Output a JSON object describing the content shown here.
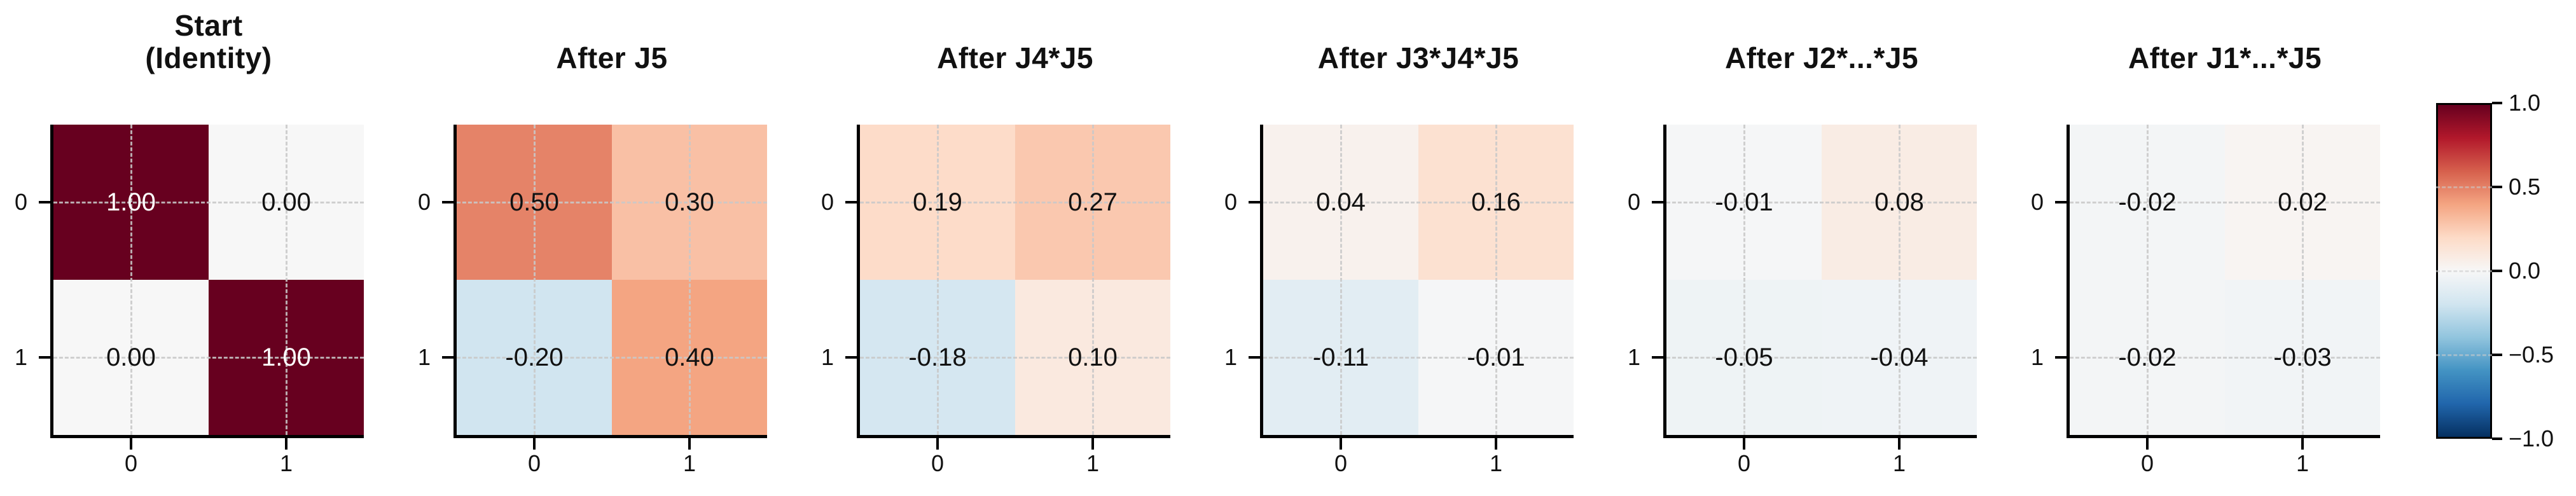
{
  "chart_data": {
    "type": "heatmap",
    "panels": [
      {
        "title_lines": [
          "Start",
          "(Identity)"
        ],
        "values": [
          [
            1.0,
            0.0
          ],
          [
            0.0,
            1.0
          ]
        ],
        "labels": [
          [
            "1.00",
            "0.00"
          ],
          [
            "0.00",
            "1.00"
          ]
        ]
      },
      {
        "title_lines": [
          "After J5"
        ],
        "values": [
          [
            0.5,
            0.3
          ],
          [
            -0.2,
            0.4
          ]
        ],
        "labels": [
          [
            "0.50",
            "0.30"
          ],
          [
            "-0.20",
            "0.40"
          ]
        ]
      },
      {
        "title_lines": [
          "After J4*J5"
        ],
        "values": [
          [
            0.19,
            0.27
          ],
          [
            -0.18,
            0.1
          ]
        ],
        "labels": [
          [
            "0.19",
            "0.27"
          ],
          [
            "-0.18",
            "0.10"
          ]
        ]
      },
      {
        "title_lines": [
          "After J3*J4*J5"
        ],
        "values": [
          [
            0.04,
            0.16
          ],
          [
            -0.11,
            -0.01
          ]
        ],
        "labels": [
          [
            "0.04",
            "0.16"
          ],
          [
            "-0.11",
            "-0.01"
          ]
        ]
      },
      {
        "title_lines": [
          "After J2*...*J5"
        ],
        "values": [
          [
            -0.01,
            0.08
          ],
          [
            -0.05,
            -0.04
          ]
        ],
        "labels": [
          [
            "-0.01",
            "0.08"
          ],
          [
            "-0.05",
            "-0.04"
          ]
        ]
      },
      {
        "title_lines": [
          "After J1*...*J5"
        ],
        "values": [
          [
            -0.02,
            0.02
          ],
          [
            -0.02,
            -0.03
          ]
        ],
        "labels": [
          [
            "-0.02",
            "0.02"
          ],
          [
            "-0.02",
            "-0.03"
          ]
        ]
      }
    ],
    "x_ticklabels": [
      "0",
      "1"
    ],
    "y_ticklabels": [
      "0",
      "1"
    ],
    "vmin": -1.0,
    "vmax": 1.0,
    "colormap": "RdBu_r",
    "grid": true,
    "legend_position": "right-colorbar",
    "colorbar": {
      "tick_labels": [
        "1.0",
        "0.5",
        "0.0",
        "−0.5",
        "−1.0"
      ],
      "tick_values": [
        1.0,
        0.5,
        0.0,
        -0.5,
        -1.0
      ]
    }
  },
  "colors": {
    "max_color": "#67001f",
    "zero_color": "#f7f7f7",
    "min_color": "#053061",
    "grid_color": "#cccccc",
    "spine_color": "#000000",
    "background": "#ffffff"
  }
}
